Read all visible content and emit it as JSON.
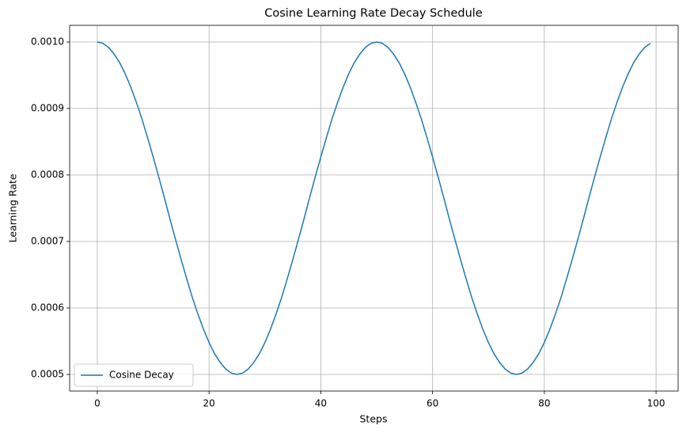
{
  "chart_data": {
    "type": "line",
    "title": "Cosine Learning Rate Decay Schedule",
    "x_label": "Steps",
    "y_label": "Learning Rate",
    "x": [
      0,
      1,
      2,
      3,
      4,
      5,
      6,
      7,
      8,
      9,
      10,
      11,
      12,
      13,
      14,
      15,
      16,
      17,
      18,
      19,
      20,
      21,
      22,
      23,
      24,
      25,
      26,
      27,
      28,
      29,
      30,
      31,
      32,
      33,
      34,
      35,
      36,
      37,
      38,
      39,
      40,
      41,
      42,
      43,
      44,
      45,
      46,
      47,
      48,
      49,
      50,
      51,
      52,
      53,
      54,
      55,
      56,
      57,
      58,
      59,
      60,
      61,
      62,
      63,
      64,
      65,
      66,
      67,
      68,
      69,
      70,
      71,
      72,
      73,
      74,
      75,
      76,
      77,
      78,
      79,
      80,
      81,
      82,
      83,
      84,
      85,
      86,
      87,
      88,
      89,
      90,
      91,
      92,
      93,
      94,
      95,
      96,
      97,
      98,
      99
    ],
    "series": [
      {
        "name": "Cosine Decay",
        "color": "#1f77b4",
        "values": [
          0.001,
          0.000998,
          0.000992,
          0.000982,
          0.000969,
          0.000952,
          0.000932,
          0.000909,
          0.000884,
          0.000856,
          0.000827,
          0.000797,
          0.000766,
          0.000734,
          0.000703,
          0.000673,
          0.000644,
          0.000616,
          0.000591,
          0.000568,
          0.000548,
          0.000531,
          0.000518,
          0.000508,
          0.000502,
          0.0005,
          0.000502,
          0.000508,
          0.000518,
          0.000531,
          0.000548,
          0.000568,
          0.000591,
          0.000616,
          0.000644,
          0.000673,
          0.000703,
          0.000734,
          0.000766,
          0.000797,
          0.000827,
          0.000856,
          0.000884,
          0.000909,
          0.000932,
          0.000952,
          0.000969,
          0.000982,
          0.000992,
          0.000998,
          0.001,
          0.000998,
          0.000992,
          0.000982,
          0.000969,
          0.000952,
          0.000932,
          0.000909,
          0.000884,
          0.000856,
          0.000827,
          0.000797,
          0.000766,
          0.000734,
          0.000703,
          0.000673,
          0.000644,
          0.000616,
          0.000591,
          0.000568,
          0.000548,
          0.000531,
          0.000518,
          0.000508,
          0.000502,
          0.0005,
          0.000502,
          0.000508,
          0.000518,
          0.000531,
          0.000548,
          0.000568,
          0.000591,
          0.000616,
          0.000644,
          0.000673,
          0.000703,
          0.000734,
          0.000766,
          0.000797,
          0.000827,
          0.000856,
          0.000884,
          0.000909,
          0.000932,
          0.000952,
          0.000969,
          0.000982,
          0.000992,
          0.000998
        ]
      }
    ],
    "xlim": [
      -4.95,
      103.95
    ],
    "ylim": [
      0.000475,
      0.001025
    ],
    "xticks": [
      0,
      20,
      40,
      60,
      80,
      100
    ],
    "yticks": [
      0.0005,
      0.0006,
      0.0007,
      0.0008,
      0.0009,
      {
        "value": 0.001,
        "label": "0.0010"
      }
    ],
    "grid": true,
    "legend": "lower left"
  }
}
